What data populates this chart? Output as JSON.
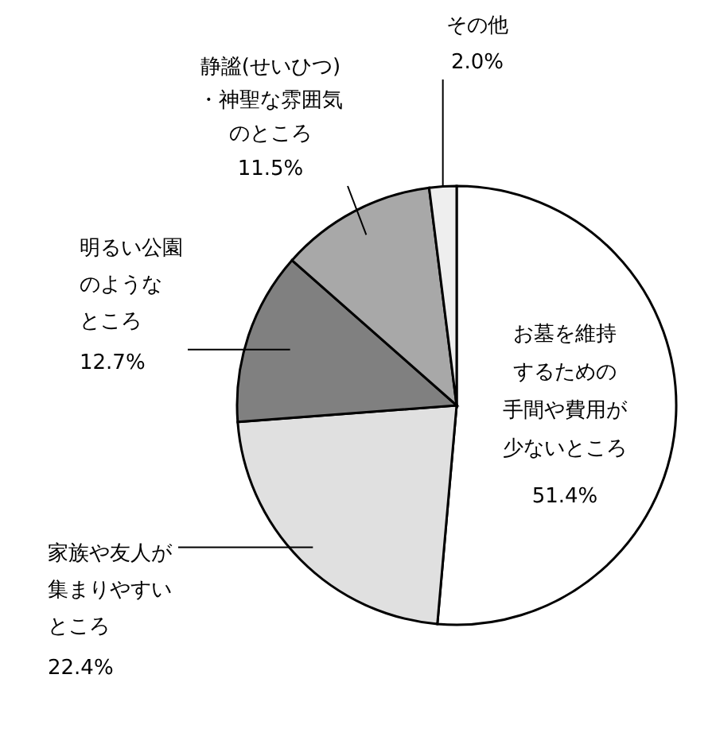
{
  "chart_data": {
    "type": "pie",
    "categories": [
      "お墓を維持するための手間や費用が少ないところ",
      "家族や友人が集まりやすいところ",
      "明るい公園のようなところ",
      "静謐(せいひつ)・神聖な雰囲気のところ",
      "その他"
    ],
    "values": [
      51.4,
      22.4,
      12.7,
      11.5,
      2.0
    ],
    "value_labels": [
      "51.4%",
      "22.4%",
      "12.7%",
      "11.5%",
      "2.0%"
    ],
    "colors": [
      "#ffffff",
      "#e0e0e0",
      "#808080",
      "#a8a8a8",
      "#eeeeee"
    ]
  }
}
